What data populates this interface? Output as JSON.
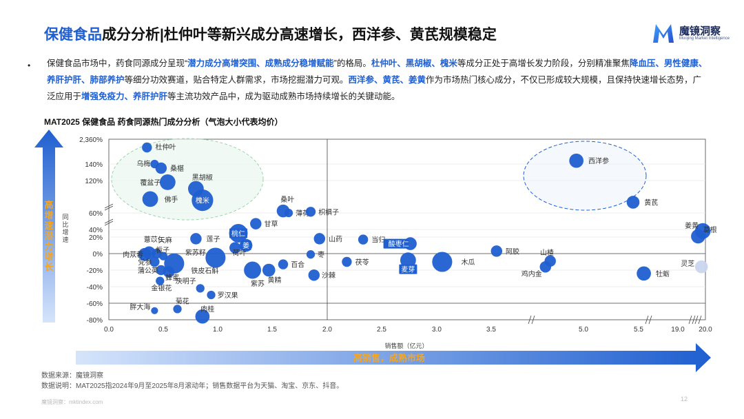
{
  "header": {
    "title_highlight": "保健食品",
    "title_rest": "成分分析|杜仲叶等新兴成分高速增长，西洋参、黄芪规模稳定",
    "logo_name": "魔镜洞察",
    "logo_sub": "Moojing Market Intelligence"
  },
  "summary": {
    "bullet": "•",
    "segments": [
      {
        "t": "保健食品市场中，药食同源成分呈现“",
        "b": false
      },
      {
        "t": "潜力成分高增突围、成熟成分稳增赋能",
        "b": true
      },
      {
        "t": "”的格局。",
        "b": false
      },
      {
        "t": "杜仲叶、黑胡椒、槐米",
        "b": true
      },
      {
        "t": "等成分正处于高增长发力阶段，分别精准聚焦",
        "b": false
      },
      {
        "t": "降血压、男性健康、养肝护肝、肺部养护",
        "b": true
      },
      {
        "t": "等细分功效赛道，贴合特定人群需求，市场挖掘潜力可观。",
        "b": false
      },
      {
        "t": "西洋参、黄芪、姜黄",
        "b": true
      },
      {
        "t": "作为市场热门核心成分，不仅已形成较大规模，且保持快速增长态势，广泛应用于",
        "b": false
      },
      {
        "t": "增强免疫力、养肝护肝",
        "b": true
      },
      {
        "t": "等主流功效产品中，成为驱动成熟市场持续增长的关键动能。",
        "b": false
      }
    ]
  },
  "chart_title": "MAT2025 保健食品 药食同源热门成分分析（气泡大小代表均价）",
  "chart_data": {
    "type": "scatter",
    "title": "MAT2025 保健食品 药食同源热门成分分析（气泡大小代表均价）",
    "xlabel": "销售额（亿元）",
    "ylabel": "同比增速",
    "x_ticks": [
      "0.0",
      "0.5",
      "1.0",
      "1.5",
      "2.0",
      "2.5",
      "3.0",
      "3.5",
      "5.0",
      "5.5",
      "19.0",
      "20.0"
    ],
    "y_ticks": [
      "2,360%",
      "140%",
      "120%",
      "60%",
      "40%",
      "20%",
      "0%",
      "-20%",
      "-40%",
      "-60%",
      "-80%"
    ],
    "left_arrow_label": "高增速潜力增长",
    "bottom_arrow_label": "高销售，成熟市场",
    "colors": {
      "accent": "#1f5fd0",
      "bubble": "#1f5fd0",
      "light": "#c8d6ef",
      "green": "#9ad5a8"
    },
    "points": [
      {
        "name": "杜仲叶",
        "x": 0.35,
        "y": 160,
        "size": 4
      },
      {
        "name": "乌梅",
        "x": 0.42,
        "y": 140,
        "size": 3
      },
      {
        "name": "桑椹",
        "x": 0.48,
        "y": 135,
        "size": 5
      },
      {
        "name": "覆盆子",
        "x": 0.54,
        "y": 118,
        "size": 8
      },
      {
        "name": "黑胡椒",
        "x": 0.8,
        "y": 110,
        "size": 8
      },
      {
        "name": "佛手",
        "x": 0.38,
        "y": 95,
        "size": 8
      },
      {
        "name": "槐米",
        "x": 0.86,
        "y": 92,
        "size": 12
      },
      {
        "name": "桑叶",
        "x": 1.6,
        "y": 65,
        "size": 6
      },
      {
        "name": "薄荷",
        "x": 1.65,
        "y": 60,
        "size": 3
      },
      {
        "name": "枳椇子",
        "x": 1.85,
        "y": 63,
        "size": 4
      },
      {
        "name": "甘草",
        "x": 1.35,
        "y": 47,
        "size": 5
      },
      {
        "name": "桃仁",
        "x": 1.19,
        "y": 30,
        "size": 10
      },
      {
        "name": "莲子",
        "x": 0.8,
        "y": 18,
        "size": 5
      },
      {
        "name": "山药",
        "x": 1.93,
        "y": 18,
        "size": 5
      },
      {
        "name": "当归",
        "x": 2.33,
        "y": 17,
        "size": 4
      },
      {
        "name": "酸枣仁",
        "x": 2.76,
        "y": 12,
        "size": 6
      },
      {
        "name": "姜",
        "x": 1.26,
        "y": 10,
        "size": 6
      },
      {
        "name": "薏苡仁",
        "x": 0.37,
        "y": 1,
        "size": 6
      },
      {
        "name": "天麻",
        "x": 0.44,
        "y": 0,
        "size": 4
      },
      {
        "name": "栀子",
        "x": 0.5,
        "y": -3,
        "size": 3
      },
      {
        "name": "紫苏籽",
        "x": 0.98,
        "y": -5,
        "size": 11
      },
      {
        "name": "荷叶",
        "x": 1.16,
        "y": 7,
        "size": 5
      },
      {
        "name": "枣",
        "x": 1.85,
        "y": -1,
        "size": 3
      },
      {
        "name": "麦芽",
        "x": 2.74,
        "y": -8,
        "size": 8
      },
      {
        "name": "木瓜",
        "x": 3.05,
        "y": -10,
        "size": 11
      },
      {
        "name": "阿胶",
        "x": 3.56,
        "y": 3,
        "size": 5
      },
      {
        "name": "山楂",
        "x": 4.3,
        "y": -9,
        "size": 5
      },
      {
        "name": "鸡内金",
        "x": 4.2,
        "y": -16,
        "size": 5
      },
      {
        "name": "肉苁蓉",
        "x": 0.33,
        "y": -1,
        "size": 6
      },
      {
        "name": "党参",
        "x": 0.42,
        "y": -10,
        "size": 4
      },
      {
        "name": "铁皮石斛",
        "x": 0.6,
        "y": -12,
        "size": 11
      },
      {
        "name": "蒲公英",
        "x": 0.48,
        "y": -20,
        "size": 4
      },
      {
        "name": "蜂蜜",
        "x": 0.55,
        "y": -22,
        "size": 5
      },
      {
        "name": "百合",
        "x": 1.6,
        "y": -13,
        "size": 4
      },
      {
        "name": "茯苓",
        "x": 2.18,
        "y": -10,
        "size": 4
      },
      {
        "name": "紫苏",
        "x": 1.32,
        "y": -20,
        "size": 9
      },
      {
        "name": "黄精",
        "x": 1.47,
        "y": -20,
        "size": 6
      },
      {
        "name": "沙棘",
        "x": 1.88,
        "y": -26,
        "size": 5
      },
      {
        "name": "金银花",
        "x": 0.47,
        "y": -33,
        "size": 3
      },
      {
        "name": "决明子",
        "x": 0.84,
        "y": -42,
        "size": 3
      },
      {
        "name": "罗汉果",
        "x": 0.94,
        "y": -50,
        "size": 3
      },
      {
        "name": "菊花",
        "x": 0.63,
        "y": -67,
        "size": 3
      },
      {
        "name": "胖大海",
        "x": 0.42,
        "y": -69,
        "size": 2
      },
      {
        "name": "肉桂",
        "x": 0.86,
        "y": -76,
        "size": 7
      },
      {
        "name": "西洋参",
        "x": 4.85,
        "y": 144,
        "size": 7
      },
      {
        "name": "黄芪",
        "x": 5.45,
        "y": 87,
        "size": 6
      },
      {
        "name": "姜黄",
        "x": 19.92,
        "y": 36,
        "size": 8
      },
      {
        "name": "葛根",
        "x": 19.78,
        "y": 22,
        "size": 7
      },
      {
        "name": "灵芝",
        "x": 19.88,
        "y": -16,
        "size": 6
      },
      {
        "name": "牡蛎",
        "x": 5.58,
        "y": -24,
        "size": 7
      }
    ]
  },
  "source": {
    "line1": "数据来源：魔镜洞察",
    "line2": "数据说明：MAT2025指2024年9月至2025年8月滚动年；销售数据平台为天猫、淘宝、京东、抖音。"
  },
  "footer": {
    "site": "魔镜洞察：mktindex.com",
    "page": "12"
  }
}
